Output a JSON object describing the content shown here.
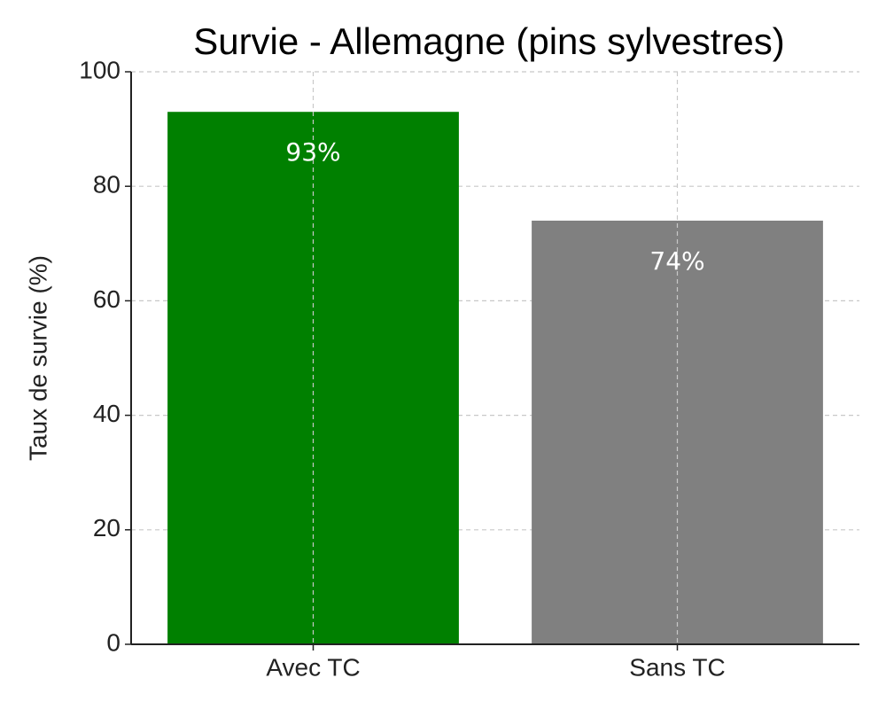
{
  "chart_data": {
    "type": "bar",
    "title": "Survie - Allemagne (pins sylvestres)",
    "y_label": "Taux de survie (%)",
    "categories": [
      "Avec TC",
      "Sans TC"
    ],
    "values": [
      93,
      74
    ],
    "value_labels": [
      "93%",
      "74%"
    ],
    "colors": [
      "#008000",
      "#808080"
    ],
    "ylim": [
      0,
      100
    ],
    "yticks": [
      0,
      20,
      40,
      60,
      80,
      100
    ],
    "grid": true
  }
}
